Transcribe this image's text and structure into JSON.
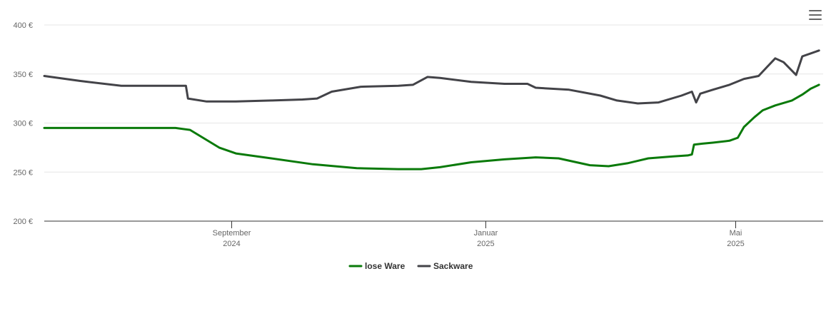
{
  "chart_data": {
    "type": "line",
    "yunit": "€",
    "ylim": [
      200,
      400
    ],
    "yticks": [
      {
        "value": 200,
        "label": "200 €"
      },
      {
        "value": 250,
        "label": "250 €"
      },
      {
        "value": 300,
        "label": "300 €"
      },
      {
        "value": 350,
        "label": "350 €"
      },
      {
        "value": 400,
        "label": "400 €"
      }
    ],
    "xlim": [
      "2024-06-03",
      "2025-06-12"
    ],
    "xticks": [
      {
        "date": "2024-09-01",
        "month": "September",
        "year": "2024"
      },
      {
        "date": "2025-01-01",
        "month": "Januar",
        "year": "2025"
      },
      {
        "date": "2025-05-01",
        "month": "Mai",
        "year": "2025"
      }
    ],
    "grid": true,
    "legend_position": "bottom-center",
    "series": [
      {
        "name": "lose Ware",
        "color": "#0a7a0a",
        "points": [
          [
            "2024-06-03",
            295
          ],
          [
            "2024-08-05",
            295
          ],
          [
            "2024-08-12",
            293
          ],
          [
            "2024-08-26",
            275
          ],
          [
            "2024-09-03",
            269
          ],
          [
            "2024-09-20",
            264
          ],
          [
            "2024-10-10",
            258
          ],
          [
            "2024-10-31",
            254
          ],
          [
            "2024-11-20",
            253
          ],
          [
            "2024-12-01",
            253
          ],
          [
            "2024-12-10",
            255
          ],
          [
            "2024-12-25",
            260
          ],
          [
            "2025-01-10",
            263
          ],
          [
            "2025-01-25",
            265
          ],
          [
            "2025-02-05",
            264
          ],
          [
            "2025-02-20",
            257
          ],
          [
            "2025-03-01",
            256
          ],
          [
            "2025-03-10",
            259
          ],
          [
            "2025-03-20",
            264
          ],
          [
            "2025-04-01",
            266
          ],
          [
            "2025-04-08",
            267
          ],
          [
            "2025-04-10",
            268
          ],
          [
            "2025-04-11",
            278
          ],
          [
            "2025-04-15",
            279
          ],
          [
            "2025-04-20",
            280
          ],
          [
            "2025-04-28",
            282
          ],
          [
            "2025-05-02",
            285
          ],
          [
            "2025-05-05",
            296
          ],
          [
            "2025-05-10",
            306
          ],
          [
            "2025-05-14",
            313
          ],
          [
            "2025-05-20",
            318
          ],
          [
            "2025-05-28",
            323
          ],
          [
            "2025-06-02",
            329
          ],
          [
            "2025-06-06",
            335
          ],
          [
            "2025-06-10",
            339
          ]
        ]
      },
      {
        "name": "Sackware",
        "color": "#434348",
        "points": [
          [
            "2024-06-03",
            348
          ],
          [
            "2024-06-20",
            343
          ],
          [
            "2024-07-10",
            338
          ],
          [
            "2024-07-26",
            338
          ],
          [
            "2024-08-10",
            338
          ],
          [
            "2024-08-11",
            325
          ],
          [
            "2024-08-20",
            322
          ],
          [
            "2024-09-03",
            322
          ],
          [
            "2024-09-20",
            323
          ],
          [
            "2024-10-05",
            324
          ],
          [
            "2024-10-12",
            325
          ],
          [
            "2024-10-19",
            332
          ],
          [
            "2024-11-02",
            337
          ],
          [
            "2024-11-20",
            338
          ],
          [
            "2024-11-27",
            339
          ],
          [
            "2024-12-04",
            347
          ],
          [
            "2024-12-10",
            346
          ],
          [
            "2024-12-25",
            342
          ],
          [
            "2025-01-10",
            340
          ],
          [
            "2025-01-21",
            340
          ],
          [
            "2025-01-25",
            336
          ],
          [
            "2025-02-10",
            334
          ],
          [
            "2025-02-25",
            328
          ],
          [
            "2025-03-05",
            323
          ],
          [
            "2025-03-15",
            320
          ],
          [
            "2025-03-25",
            321
          ],
          [
            "2025-04-05",
            328
          ],
          [
            "2025-04-10",
            332
          ],
          [
            "2025-04-12",
            321
          ],
          [
            "2025-04-14",
            330
          ],
          [
            "2025-04-20",
            334
          ],
          [
            "2025-04-28",
            339
          ],
          [
            "2025-05-05",
            345
          ],
          [
            "2025-05-12",
            348
          ],
          [
            "2025-05-16",
            357
          ],
          [
            "2025-05-20",
            366
          ],
          [
            "2025-05-24",
            362
          ],
          [
            "2025-05-30",
            349
          ],
          [
            "2025-06-02",
            368
          ],
          [
            "2025-06-06",
            371
          ],
          [
            "2025-06-10",
            374
          ]
        ]
      }
    ]
  }
}
